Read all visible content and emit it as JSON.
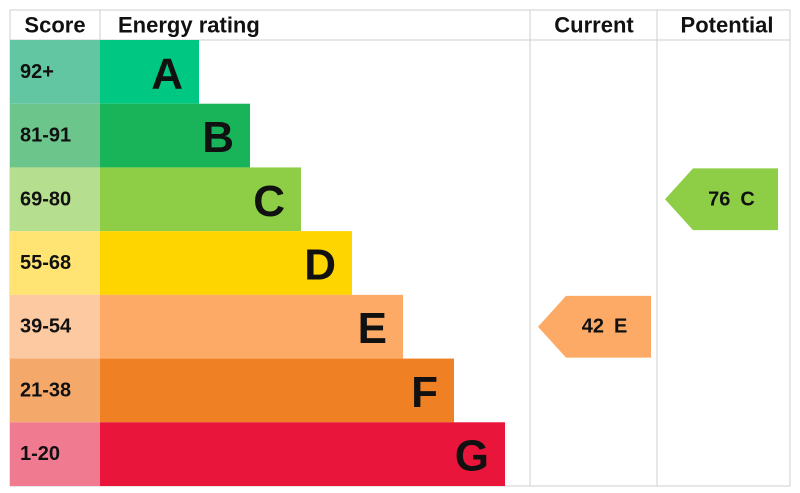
{
  "header": {
    "score": "Score",
    "rating": "Energy rating",
    "current": "Current",
    "potential": "Potential"
  },
  "bands": [
    {
      "score": "92+",
      "letter": "A",
      "color": "#00c781",
      "score_color": "#63c6a3"
    },
    {
      "score": "81-91",
      "letter": "B",
      "color": "#19b459",
      "score_color": "#6cc58b"
    },
    {
      "score": "69-80",
      "letter": "C",
      "color": "#8dce46",
      "score_color": "#b5de8e"
    },
    {
      "score": "55-68",
      "letter": "D",
      "color": "#ffd500",
      "score_color": "#ffe373"
    },
    {
      "score": "39-54",
      "letter": "E",
      "color": "#fcaa65",
      "score_color": "#fdc9a1"
    },
    {
      "score": "21-38",
      "letter": "F",
      "color": "#ef8023",
      "score_color": "#f4a96b"
    },
    {
      "score": "1-20",
      "letter": "G",
      "color": "#e9153b",
      "score_color": "#f07a90"
    }
  ],
  "current": {
    "score": 42,
    "rating": "E"
  },
  "potential": {
    "score": 76,
    "rating": "C"
  }
}
